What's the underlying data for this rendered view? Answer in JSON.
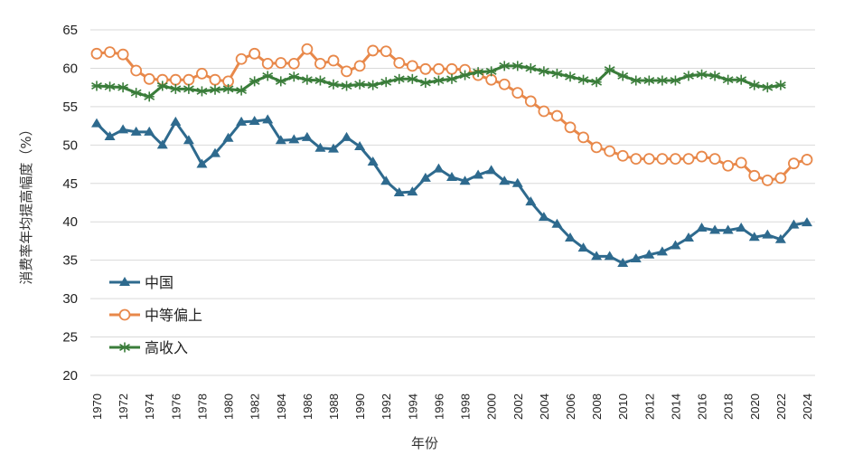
{
  "chart_data": {
    "type": "line",
    "title": "",
    "xlabel": "年份",
    "ylabel": "消费率年均提高幅度（%）",
    "ylim": [
      20,
      65
    ],
    "yticks": [
      20,
      25,
      30,
      35,
      40,
      45,
      50,
      55,
      60,
      65
    ],
    "xlim": [
      1970,
      2024
    ],
    "xticks": [
      "1970",
      "1972",
      "1974",
      "1976",
      "1978",
      "1980",
      "1982",
      "1984",
      "1986",
      "1988",
      "1990",
      "1992",
      "1994",
      "1996",
      "1998",
      "2000",
      "2002",
      "2004",
      "2006",
      "2008",
      "2010",
      "2012",
      "2014",
      "2016",
      "2018",
      "2020",
      "2022",
      "2024"
    ],
    "grid": "horizontal",
    "legend_position": "lower-left",
    "x": [
      1970,
      1971,
      1972,
      1973,
      1974,
      1975,
      1976,
      1977,
      1978,
      1979,
      1980,
      1981,
      1982,
      1983,
      1984,
      1985,
      1986,
      1987,
      1988,
      1989,
      1990,
      1991,
      1992,
      1993,
      1994,
      1995,
      1996,
      1997,
      1998,
      1999,
      2000,
      2001,
      2002,
      2003,
      2004,
      2005,
      2006,
      2007,
      2008,
      2009,
      2010,
      2011,
      2012,
      2013,
      2014,
      2015,
      2016,
      2017,
      2018,
      2019,
      2020,
      2021,
      2022,
      2023,
      2024
    ],
    "series": [
      {
        "name": "中国",
        "color": "#2e6a8e",
        "marker": "triangle",
        "values": [
          52.8,
          51.1,
          52.0,
          51.7,
          51.7,
          50.0,
          53.0,
          50.6,
          47.5,
          48.9,
          50.9,
          53.0,
          53.1,
          53.3,
          50.6,
          50.7,
          51.0,
          49.6,
          49.5,
          51.0,
          49.8,
          47.8,
          45.3,
          43.8,
          43.9,
          45.7,
          46.9,
          45.8,
          45.3,
          46.1,
          46.7,
          45.3,
          45.0,
          42.6,
          40.6,
          39.7,
          37.9,
          36.6,
          35.5,
          35.5,
          34.6,
          35.2,
          35.7,
          36.1,
          36.9,
          37.9,
          39.2,
          38.9,
          38.9,
          39.2,
          38.0,
          38.3,
          37.7,
          39.6,
          39.9
        ]
      },
      {
        "name": "中等偏上",
        "color": "#e8884a",
        "marker": "circle",
        "values": [
          61.9,
          62.1,
          61.8,
          59.7,
          58.6,
          58.5,
          58.5,
          58.5,
          59.3,
          58.5,
          58.3,
          61.2,
          61.9,
          60.6,
          60.7,
          60.6,
          62.5,
          60.6,
          61.0,
          59.6,
          60.3,
          62.3,
          62.2,
          60.7,
          60.3,
          59.9,
          59.9,
          59.9,
          59.8,
          59.1,
          58.5,
          57.9,
          56.8,
          55.7,
          54.4,
          53.8,
          52.3,
          51.0,
          49.7,
          49.2,
          48.6,
          48.2,
          48.2,
          48.2,
          48.2,
          48.2,
          48.5,
          48.2,
          47.3,
          47.7,
          46.0,
          45.4,
          45.7,
          47.6,
          48.1
        ]
      },
      {
        "name": "高收入",
        "color": "#3a7d3a",
        "marker": "asterisk",
        "values": [
          57.7,
          57.6,
          57.5,
          56.8,
          56.3,
          57.7,
          57.3,
          57.3,
          57.0,
          57.2,
          57.3,
          57.1,
          58.3,
          59.0,
          58.3,
          58.9,
          58.5,
          58.4,
          57.9,
          57.7,
          57.9,
          57.8,
          58.2,
          58.6,
          58.6,
          58.1,
          58.4,
          58.6,
          59.1,
          59.5,
          59.6,
          60.3,
          60.3,
          60.0,
          59.6,
          59.3,
          58.9,
          58.5,
          58.2,
          59.8,
          59.0,
          58.4,
          58.4,
          58.4,
          58.4,
          59.0,
          59.2,
          59.0,
          58.5,
          58.5,
          57.8,
          57.5,
          57.8,
          null,
          null
        ]
      }
    ]
  }
}
